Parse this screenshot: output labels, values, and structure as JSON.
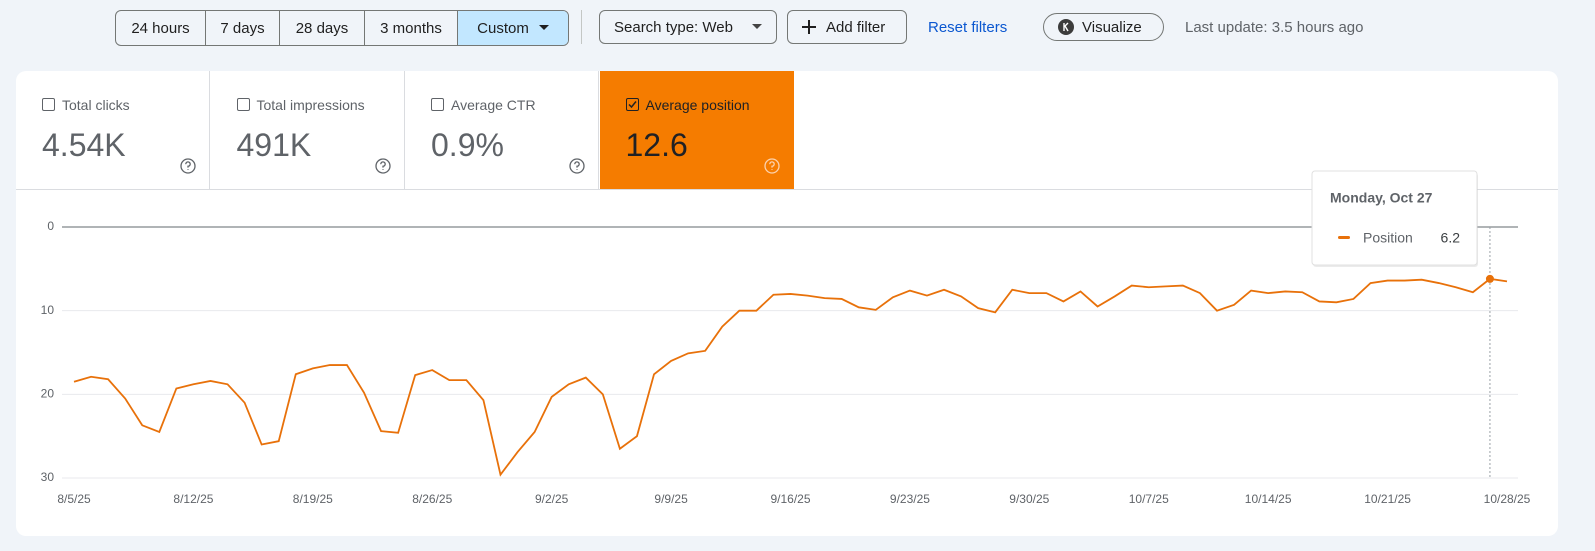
{
  "toolbar": {
    "ranges": [
      "24 hours",
      "7 days",
      "28 days",
      "3 months",
      "Custom"
    ],
    "active_range": 4,
    "search_type": "Search type: Web",
    "add_filter": "Add filter",
    "reset_filters": "Reset filters",
    "visualize": "Visualize",
    "last_update": "Last update: 3.5 hours ago"
  },
  "metrics": [
    {
      "label": "Total clicks",
      "value": "4.54K",
      "checked": false
    },
    {
      "label": "Total impressions",
      "value": "491K",
      "checked": false
    },
    {
      "label": "Average CTR",
      "value": "0.9%",
      "checked": false
    },
    {
      "label": "Average position",
      "value": "12.6",
      "checked": true
    }
  ],
  "active_color": "#f57c00",
  "chart_data": {
    "type": "line",
    "categories": [
      "8/5/25",
      null,
      null,
      null,
      null,
      null,
      null,
      "8/12/25",
      null,
      null,
      null,
      null,
      null,
      null,
      "8/19/25",
      null,
      null,
      null,
      null,
      null,
      null,
      "8/26/25",
      null,
      null,
      null,
      null,
      null,
      null,
      "9/2/25",
      null,
      null,
      null,
      null,
      null,
      null,
      "9/9/25",
      null,
      null,
      null,
      null,
      null,
      null,
      "9/16/25",
      null,
      null,
      null,
      null,
      null,
      null,
      "9/23/25",
      null,
      null,
      null,
      null,
      null,
      null,
      "9/30/25",
      null,
      null,
      null,
      null,
      null,
      null,
      "10/7/25",
      null,
      null,
      null,
      null,
      null,
      null,
      "10/14/25",
      null,
      null,
      null,
      null,
      null,
      null,
      "10/21/25",
      null,
      null,
      null,
      null,
      null,
      null,
      "10/28/25"
    ],
    "series": [
      {
        "name": "Position",
        "color": "#e8710a",
        "values": [
          18.5,
          17.9,
          18.2,
          20.5,
          23.7,
          24.5,
          19.3,
          18.8,
          18.4,
          18.8,
          21.0,
          26.0,
          25.6,
          17.6,
          16.9,
          16.5,
          16.5,
          19.8,
          24.4,
          24.6,
          17.7,
          17.1,
          18.3,
          18.3,
          20.7,
          29.6,
          26.9,
          24.5,
          20.3,
          18.8,
          18.0,
          20.0,
          26.5,
          25.0,
          17.6,
          16.0,
          15.1,
          14.8,
          11.9,
          10.0,
          10.0,
          8.1,
          8.0,
          8.2,
          8.5,
          8.6,
          9.6,
          9.9,
          8.4,
          7.6,
          8.2,
          7.5,
          8.3,
          9.7,
          10.2,
          7.5,
          7.9,
          7.9,
          8.9,
          7.7,
          9.5,
          8.3,
          7.0,
          7.2,
          7.1,
          7.0,
          7.9,
          10.0,
          9.3,
          7.6,
          7.9,
          7.7,
          7.8,
          8.9,
          9.0,
          8.6,
          6.7,
          6.4,
          6.4,
          6.3,
          6.7,
          7.2,
          7.8,
          6.2,
          6.5
        ]
      }
    ],
    "ylim": [
      0,
      30
    ],
    "yticks": [
      0,
      10,
      20,
      30
    ],
    "y_reversed": true,
    "grid": true,
    "tooltip": {
      "title": "Monday, Oct 27",
      "index": 83
    }
  }
}
